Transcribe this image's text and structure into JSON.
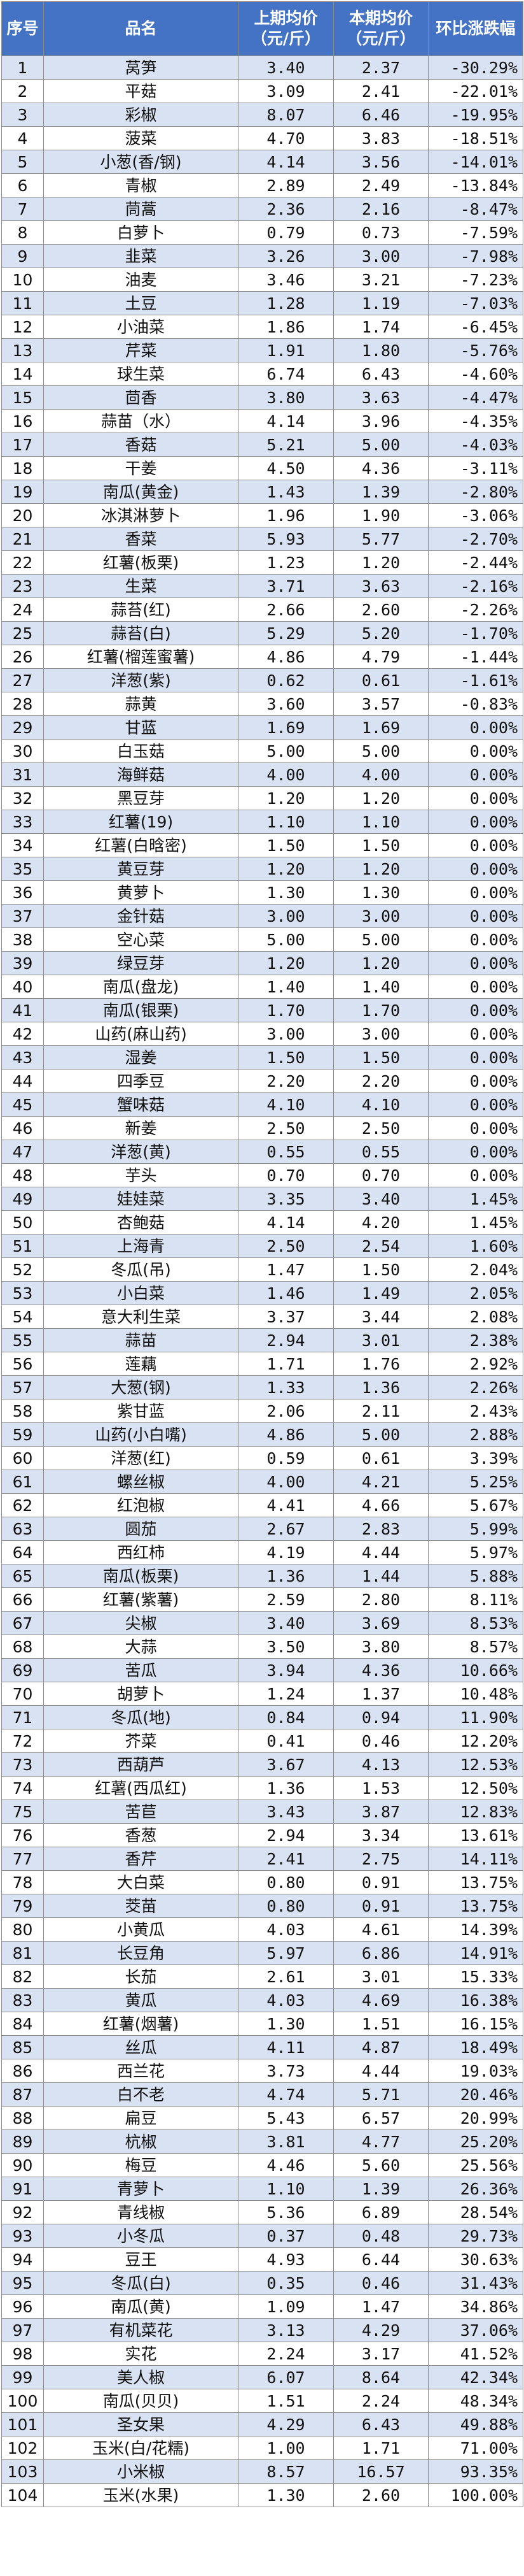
{
  "header": {
    "index": "序号",
    "name": "品名",
    "prev_line1": "上期均价",
    "prev_line2": "（元/斤）",
    "curr_line1": "本期均价",
    "curr_line2": "（元/斤）",
    "change": "环比涨跌幅"
  },
  "rows": [
    [
      "1",
      "莴笋",
      "3.40",
      "2.37",
      "-30.29%"
    ],
    [
      "2",
      "平菇",
      "3.09",
      "2.41",
      "-22.01%"
    ],
    [
      "3",
      "彩椒",
      "8.07",
      "6.46",
      "-19.95%"
    ],
    [
      "4",
      "菠菜",
      "4.70",
      "3.83",
      "-18.51%"
    ],
    [
      "5",
      "小葱(香/钢)",
      "4.14",
      "3.56",
      "-14.01%"
    ],
    [
      "6",
      "青椒",
      "2.89",
      "2.49",
      "-13.84%"
    ],
    [
      "7",
      "茼蒿",
      "2.36",
      "2.16",
      "-8.47%"
    ],
    [
      "8",
      "白萝卜",
      "0.79",
      "0.73",
      "-7.59%"
    ],
    [
      "9",
      "韭菜",
      "3.26",
      "3.00",
      "-7.98%"
    ],
    [
      "10",
      "油麦",
      "3.46",
      "3.21",
      "-7.23%"
    ],
    [
      "11",
      "土豆",
      "1.28",
      "1.19",
      "-7.03%"
    ],
    [
      "12",
      "小油菜",
      "1.86",
      "1.74",
      "-6.45%"
    ],
    [
      "13",
      "芹菜",
      "1.91",
      "1.80",
      "-5.76%"
    ],
    [
      "14",
      "球生菜",
      "6.74",
      "6.43",
      "-4.60%"
    ],
    [
      "15",
      "茴香",
      "3.80",
      "3.63",
      "-4.47%"
    ],
    [
      "16",
      "蒜苗（水）",
      "4.14",
      "3.96",
      "-4.35%"
    ],
    [
      "17",
      "香菇",
      "5.21",
      "5.00",
      "-4.03%"
    ],
    [
      "18",
      "干姜",
      "4.50",
      "4.36",
      "-3.11%"
    ],
    [
      "19",
      "南瓜(黄金)",
      "1.43",
      "1.39",
      "-2.80%"
    ],
    [
      "20",
      "冰淇淋萝卜",
      "1.96",
      "1.90",
      "-3.06%"
    ],
    [
      "21",
      "香菜",
      "5.93",
      "5.77",
      "-2.70%"
    ],
    [
      "22",
      "红薯(板栗)",
      "1.23",
      "1.20",
      "-2.44%"
    ],
    [
      "23",
      "生菜",
      "3.71",
      "3.63",
      "-2.16%"
    ],
    [
      "24",
      "蒜苔(红)",
      "2.66",
      "2.60",
      "-2.26%"
    ],
    [
      "25",
      "蒜苔(白)",
      "5.29",
      "5.20",
      "-1.70%"
    ],
    [
      "26",
      "红薯(榴莲蜜薯)",
      "4.86",
      "4.79",
      "-1.44%"
    ],
    [
      "27",
      "洋葱(紫)",
      "0.62",
      "0.61",
      "-1.61%"
    ],
    [
      "28",
      "蒜黄",
      "3.60",
      "3.57",
      "-0.83%"
    ],
    [
      "29",
      "甘蓝",
      "1.69",
      "1.69",
      "0.00%"
    ],
    [
      "30",
      "白玉菇",
      "5.00",
      "5.00",
      "0.00%"
    ],
    [
      "31",
      "海鲜菇",
      "4.00",
      "4.00",
      "0.00%"
    ],
    [
      "32",
      "黑豆芽",
      "1.20",
      "1.20",
      "0.00%"
    ],
    [
      "33",
      "红薯(19)",
      "1.10",
      "1.10",
      "0.00%"
    ],
    [
      "34",
      "红薯(白晗密)",
      "1.50",
      "1.50",
      "0.00%"
    ],
    [
      "35",
      "黄豆芽",
      "1.20",
      "1.20",
      "0.00%"
    ],
    [
      "36",
      "黄萝卜",
      "1.30",
      "1.30",
      "0.00%"
    ],
    [
      "37",
      "金针菇",
      "3.00",
      "3.00",
      "0.00%"
    ],
    [
      "38",
      "空心菜",
      "5.00",
      "5.00",
      "0.00%"
    ],
    [
      "39",
      "绿豆芽",
      "1.20",
      "1.20",
      "0.00%"
    ],
    [
      "40",
      "南瓜(盘龙)",
      "1.40",
      "1.40",
      "0.00%"
    ],
    [
      "41",
      "南瓜(银栗)",
      "1.70",
      "1.70",
      "0.00%"
    ],
    [
      "42",
      "山药(麻山药)",
      "3.00",
      "3.00",
      "0.00%"
    ],
    [
      "43",
      "湿姜",
      "1.50",
      "1.50",
      "0.00%"
    ],
    [
      "44",
      "四季豆",
      "2.20",
      "2.20",
      "0.00%"
    ],
    [
      "45",
      "蟹味菇",
      "4.10",
      "4.10",
      "0.00%"
    ],
    [
      "46",
      "新姜",
      "2.50",
      "2.50",
      "0.00%"
    ],
    [
      "47",
      "洋葱(黄)",
      "0.55",
      "0.55",
      "0.00%"
    ],
    [
      "48",
      "芋头",
      "0.70",
      "0.70",
      "0.00%"
    ],
    [
      "49",
      "娃娃菜",
      "3.35",
      "3.40",
      "1.45%"
    ],
    [
      "50",
      "杏鲍菇",
      "4.14",
      "4.20",
      "1.45%"
    ],
    [
      "51",
      "上海青",
      "2.50",
      "2.54",
      "1.60%"
    ],
    [
      "52",
      "冬瓜(吊)",
      "1.47",
      "1.50",
      "2.04%"
    ],
    [
      "53",
      "小白菜",
      "1.46",
      "1.49",
      "2.05%"
    ],
    [
      "54",
      "意大利生菜",
      "3.37",
      "3.44",
      "2.08%"
    ],
    [
      "55",
      "蒜苗",
      "2.94",
      "3.01",
      "2.38%"
    ],
    [
      "56",
      "莲藕",
      "1.71",
      "1.76",
      "2.92%"
    ],
    [
      "57",
      "大葱(钢)",
      "1.33",
      "1.36",
      "2.26%"
    ],
    [
      "58",
      "紫甘蓝",
      "2.06",
      "2.11",
      "2.43%"
    ],
    [
      "59",
      "山药(小白嘴)",
      "4.86",
      "5.00",
      "2.88%"
    ],
    [
      "60",
      "洋葱(红)",
      "0.59",
      "0.61",
      "3.39%"
    ],
    [
      "61",
      "螺丝椒",
      "4.00",
      "4.21",
      "5.25%"
    ],
    [
      "62",
      "红泡椒",
      "4.41",
      "4.66",
      "5.67%"
    ],
    [
      "63",
      "圆茄",
      "2.67",
      "2.83",
      "5.99%"
    ],
    [
      "64",
      "西红柿",
      "4.19",
      "4.44",
      "5.97%"
    ],
    [
      "65",
      "南瓜(板栗)",
      "1.36",
      "1.44",
      "5.88%"
    ],
    [
      "66",
      "红薯(紫薯)",
      "2.59",
      "2.80",
      "8.11%"
    ],
    [
      "67",
      "尖椒",
      "3.40",
      "3.69",
      "8.53%"
    ],
    [
      "68",
      "大蒜",
      "3.50",
      "3.80",
      "8.57%"
    ],
    [
      "69",
      "苦瓜",
      "3.94",
      "4.36",
      "10.66%"
    ],
    [
      "70",
      "胡萝卜",
      "1.24",
      "1.37",
      "10.48%"
    ],
    [
      "71",
      "冬瓜(地)",
      "0.84",
      "0.94",
      "11.90%"
    ],
    [
      "72",
      "芥菜",
      "0.41",
      "0.46",
      "12.20%"
    ],
    [
      "73",
      "西葫芦",
      "3.67",
      "4.13",
      "12.53%"
    ],
    [
      "74",
      "红薯(西瓜红)",
      "1.36",
      "1.53",
      "12.50%"
    ],
    [
      "75",
      "苦苣",
      "3.43",
      "3.87",
      "12.83%"
    ],
    [
      "76",
      "香葱",
      "2.94",
      "3.34",
      "13.61%"
    ],
    [
      "77",
      "香芹",
      "2.41",
      "2.75",
      "14.11%"
    ],
    [
      "78",
      "大白菜",
      "0.80",
      "0.91",
      "13.75%"
    ],
    [
      "79",
      "茭苗",
      "0.80",
      "0.91",
      "13.75%"
    ],
    [
      "80",
      "小黄瓜",
      "4.03",
      "4.61",
      "14.39%"
    ],
    [
      "81",
      "长豆角",
      "5.97",
      "6.86",
      "14.91%"
    ],
    [
      "82",
      "长茄",
      "2.61",
      "3.01",
      "15.33%"
    ],
    [
      "83",
      "黄瓜",
      "4.03",
      "4.69",
      "16.38%"
    ],
    [
      "84",
      "红薯(烟薯)",
      "1.30",
      "1.51",
      "16.15%"
    ],
    [
      "85",
      "丝瓜",
      "4.11",
      "4.87",
      "18.49%"
    ],
    [
      "86",
      "西兰花",
      "3.73",
      "4.44",
      "19.03%"
    ],
    [
      "87",
      "白不老",
      "4.74",
      "5.71",
      "20.46%"
    ],
    [
      "88",
      "扁豆",
      "5.43",
      "6.57",
      "20.99%"
    ],
    [
      "89",
      "杭椒",
      "3.81",
      "4.77",
      "25.20%"
    ],
    [
      "90",
      "梅豆",
      "4.46",
      "5.60",
      "25.56%"
    ],
    [
      "91",
      "青萝卜",
      "1.10",
      "1.39",
      "26.36%"
    ],
    [
      "92",
      "青线椒",
      "5.36",
      "6.89",
      "28.54%"
    ],
    [
      "93",
      "小冬瓜",
      "0.37",
      "0.48",
      "29.73%"
    ],
    [
      "94",
      "豆王",
      "4.93",
      "6.44",
      "30.63%"
    ],
    [
      "95",
      "冬瓜(白)",
      "0.35",
      "0.46",
      "31.43%"
    ],
    [
      "96",
      "南瓜(黄)",
      "1.09",
      "1.47",
      "34.86%"
    ],
    [
      "97",
      "有机菜花",
      "3.13",
      "4.29",
      "37.06%"
    ],
    [
      "98",
      "实花",
      "2.24",
      "3.17",
      "41.52%"
    ],
    [
      "99",
      "美人椒",
      "6.07",
      "8.64",
      "42.34%"
    ],
    [
      "100",
      "南瓜(贝贝)",
      "1.51",
      "2.24",
      "48.34%"
    ],
    [
      "101",
      "圣女果",
      "4.29",
      "6.43",
      "49.88%"
    ],
    [
      "102",
      "玉米(白/花糯)",
      "1.00",
      "1.71",
      "71.00%"
    ],
    [
      "103",
      "小米椒",
      "8.57",
      "16.57",
      "93.35%"
    ],
    [
      "104",
      "玉米(水果)",
      "1.30",
      "2.60",
      "100.00%"
    ]
  ]
}
